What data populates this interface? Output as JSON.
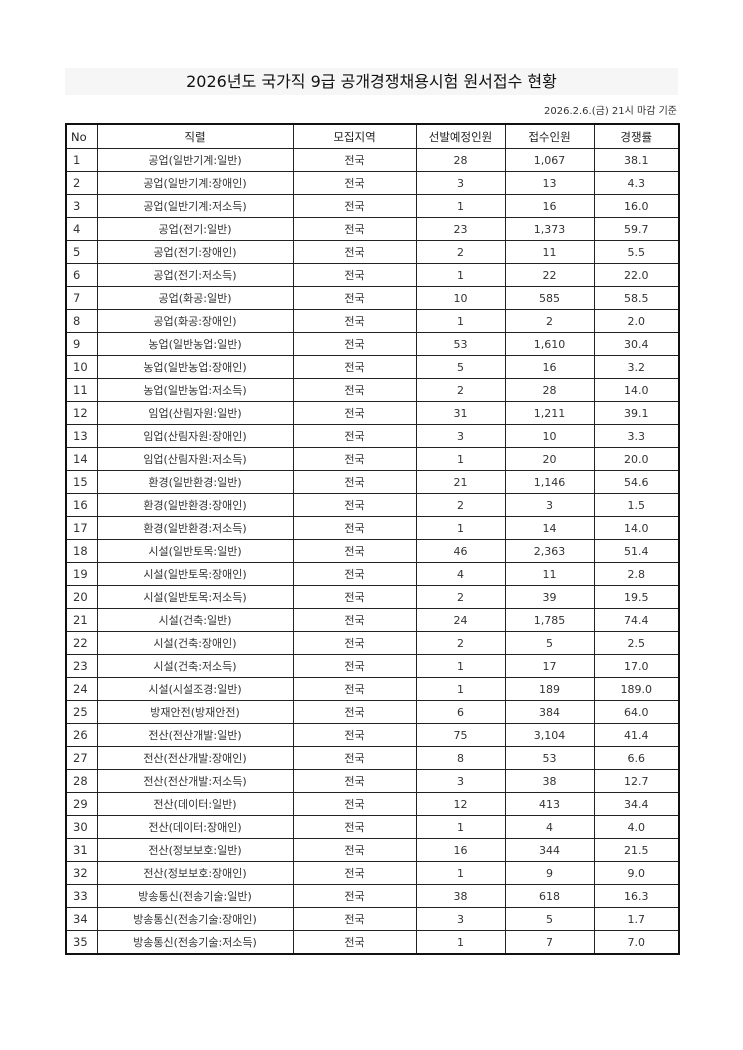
{
  "title": "2026년도 국가직 9급 공개경쟁채용시험 원서접수 현황",
  "date_note": "2026.2.6.(금) 21시 마감 기준",
  "table": {
    "headers": [
      "No",
      "직렬",
      "모집지역",
      "선발예정인원",
      "접수인원",
      "경쟁률"
    ],
    "rows": [
      [
        "1",
        "공업(일반기계:일반)",
        "전국",
        "28",
        "1,067",
        "38.1"
      ],
      [
        "2",
        "공업(일반기계:장애인)",
        "전국",
        "3",
        "13",
        "4.3"
      ],
      [
        "3",
        "공업(일반기계:저소득)",
        "전국",
        "1",
        "16",
        "16.0"
      ],
      [
        "4",
        "공업(전기:일반)",
        "전국",
        "23",
        "1,373",
        "59.7"
      ],
      [
        "5",
        "공업(전기:장애인)",
        "전국",
        "2",
        "11",
        "5.5"
      ],
      [
        "6",
        "공업(전기:저소득)",
        "전국",
        "1",
        "22",
        "22.0"
      ],
      [
        "7",
        "공업(화공:일반)",
        "전국",
        "10",
        "585",
        "58.5"
      ],
      [
        "8",
        "공업(화공:장애인)",
        "전국",
        "1",
        "2",
        "2.0"
      ],
      [
        "9",
        "농업(일반농업:일반)",
        "전국",
        "53",
        "1,610",
        "30.4"
      ],
      [
        "10",
        "농업(일반농업:장애인)",
        "전국",
        "5",
        "16",
        "3.2"
      ],
      [
        "11",
        "농업(일반농업:저소득)",
        "전국",
        "2",
        "28",
        "14.0"
      ],
      [
        "12",
        "임업(산림자원:일반)",
        "전국",
        "31",
        "1,211",
        "39.1"
      ],
      [
        "13",
        "임업(산림자원:장애인)",
        "전국",
        "3",
        "10",
        "3.3"
      ],
      [
        "14",
        "임업(산림자원:저소득)",
        "전국",
        "1",
        "20",
        "20.0"
      ],
      [
        "15",
        "환경(일반환경:일반)",
        "전국",
        "21",
        "1,146",
        "54.6"
      ],
      [
        "16",
        "환경(일반환경:장애인)",
        "전국",
        "2",
        "3",
        "1.5"
      ],
      [
        "17",
        "환경(일반환경:저소득)",
        "전국",
        "1",
        "14",
        "14.0"
      ],
      [
        "18",
        "시설(일반토목:일반)",
        "전국",
        "46",
        "2,363",
        "51.4"
      ],
      [
        "19",
        "시설(일반토목:장애인)",
        "전국",
        "4",
        "11",
        "2.8"
      ],
      [
        "20",
        "시설(일반토목:저소득)",
        "전국",
        "2",
        "39",
        "19.5"
      ],
      [
        "21",
        "시설(건축:일반)",
        "전국",
        "24",
        "1,785",
        "74.4"
      ],
      [
        "22",
        "시설(건축:장애인)",
        "전국",
        "2",
        "5",
        "2.5"
      ],
      [
        "23",
        "시설(건축:저소득)",
        "전국",
        "1",
        "17",
        "17.0"
      ],
      [
        "24",
        "시설(시설조경:일반)",
        "전국",
        "1",
        "189",
        "189.0"
      ],
      [
        "25",
        "방재안전(방재안전)",
        "전국",
        "6",
        "384",
        "64.0"
      ],
      [
        "26",
        "전산(전산개발:일반)",
        "전국",
        "75",
        "3,104",
        "41.4"
      ],
      [
        "27",
        "전산(전산개발:장애인)",
        "전국",
        "8",
        "53",
        "6.6"
      ],
      [
        "28",
        "전산(전산개발:저소득)",
        "전국",
        "3",
        "38",
        "12.7"
      ],
      [
        "29",
        "전산(데이터:일반)",
        "전국",
        "12",
        "413",
        "34.4"
      ],
      [
        "30",
        "전산(데이터:장애인)",
        "전국",
        "1",
        "4",
        "4.0"
      ],
      [
        "31",
        "전산(정보보호:일반)",
        "전국",
        "16",
        "344",
        "21.5"
      ],
      [
        "32",
        "전산(정보보호:장애인)",
        "전국",
        "1",
        "9",
        "9.0"
      ],
      [
        "33",
        "방송통신(전송기술:일반)",
        "전국",
        "38",
        "618",
        "16.3"
      ],
      [
        "34",
        "방송통신(전송기술:장애인)",
        "전국",
        "3",
        "5",
        "1.7"
      ],
      [
        "35",
        "방송통신(전송기술:저소득)",
        "전국",
        "1",
        "7",
        "7.0"
      ]
    ]
  }
}
